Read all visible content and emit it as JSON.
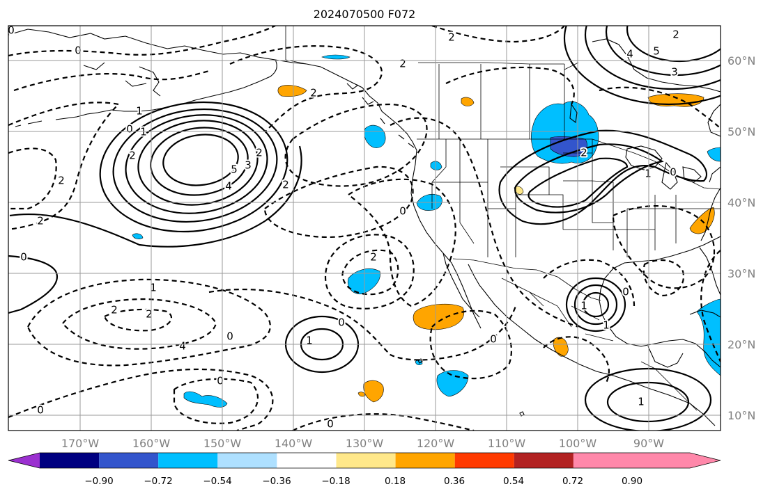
{
  "title": "2024070500 F072",
  "longitude_labels": [
    "170°W",
    "160°W",
    "150°W",
    "140°W",
    "130°W",
    "120°W",
    "110°W",
    "100°W",
    "90°W"
  ],
  "latitude_labels": [
    "60°N",
    "50°N",
    "40°N",
    "30°N",
    "20°N",
    "10°N"
  ],
  "colorbar": {
    "tick_labels": [
      "−0.90",
      "−0.72",
      "−0.54",
      "−0.36",
      "−0.18",
      "0.18",
      "0.36",
      "0.54",
      "0.72",
      "0.90"
    ],
    "colors": [
      "#9b30d0",
      "#000080",
      "#3355cc",
      "#00bfff",
      "#aee0ff",
      "#ffffff",
      "#ffe88a",
      "#ffa500",
      "#ff3a00",
      "#b22222",
      "#ff88aa"
    ]
  },
  "contour_labels": {
    "alaska_0_a": "0",
    "alaska_0_b": "0",
    "gulf_2": "2",
    "sw_2": "2",
    "ne_minus2": "2",
    "bc_1": "1",
    "high_0": "0",
    "high_1": "1",
    "high_2": "2",
    "high_4": "4",
    "high_5": "5",
    "high_3": "3",
    "high_2b": "2",
    "w_2": "2",
    "w_2b": "2",
    "hud_2": "2",
    "hud_4": "4",
    "hud_5": "5",
    "hud_3": "3",
    "plains_2": "2",
    "glakes_1": "1",
    "glakes_0": "0",
    "baja_0": "0",
    "baja_2": "2",
    "baja_2b": "2",
    "mex_0": "0",
    "mex_1": "1",
    "mex_1b": "1",
    "mex_0b": "0",
    "hi_1": "1",
    "hi_2": "2",
    "hi_2b": "2",
    "hi_0": "0",
    "hi_4": "4",
    "sub_0": "0",
    "sub_1": "1",
    "s_0": "0",
    "s_0b": "0",
    "s_0c": "0",
    "cam_1": "1",
    "w_0": "0"
  }
}
